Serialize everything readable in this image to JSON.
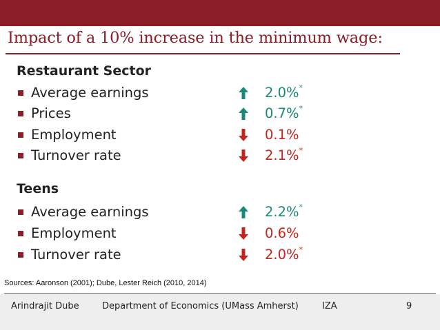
{
  "slide": {
    "title": "Impact of a 10% increase in the minimum wage:",
    "sections": [
      {
        "heading": "Restaurant Sector",
        "items": [
          {
            "label": "Average earnings",
            "direction": "up",
            "value": "2.0%",
            "mark": "*"
          },
          {
            "label": "Prices",
            "direction": "up",
            "value": "0.7%",
            "mark": "*"
          },
          {
            "label": "Employment",
            "direction": "down",
            "value": "0.1%",
            "mark": ""
          },
          {
            "label": "Turnover rate",
            "direction": "down",
            "value": "2.1%",
            "mark": "*"
          }
        ]
      },
      {
        "heading": "Teens",
        "items": [
          {
            "label": "Average earnings",
            "direction": "up",
            "value": "2.2%",
            "mark": "*"
          },
          {
            "label": "Employment",
            "direction": "down",
            "value": "0.6%",
            "mark": ""
          },
          {
            "label": "Turnover rate",
            "direction": "down",
            "value": "2.0%",
            "mark": "*"
          }
        ]
      }
    ],
    "sources": "Sources: Aaronson (2001); Dube, Lester Reich (2010, 2014)"
  },
  "footer": {
    "author": "Arindrajit Dube",
    "department": "Department of Economics (UMass Amherst)",
    "org": "IZA",
    "page_number": "9"
  },
  "colors": {
    "accent": "#8b1d26",
    "up": "#1a8a78",
    "down": "#c8241e"
  },
  "icons": {
    "up": "arrow-up-icon",
    "down": "arrow-down-icon",
    "bullet": "square-bullet-icon"
  }
}
